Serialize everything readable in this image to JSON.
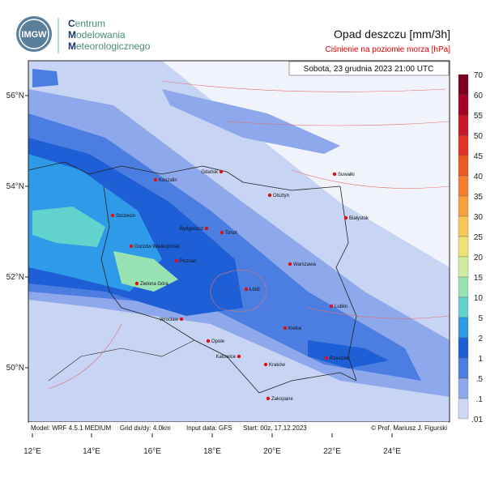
{
  "header": {
    "logo": "IMGW",
    "org": [
      "Centrum",
      "Modelowania",
      "Meteorologicznego"
    ],
    "title": "Opad deszczu [mm/3h]",
    "subtitle": "Ciśnienie na poziomie morza [hPa]",
    "valid_time": "Sobota, 23 grudnia 2023 21:00 UTC"
  },
  "map": {
    "cities": [
      "Gdańsk",
      "Koszalin",
      "Suwałki",
      "Olsztyn",
      "Szczecin",
      "Białystok",
      "Bydgoszcz",
      "Toruń",
      "Gorzów Wielkopolski",
      "Poznań",
      "Warszawa",
      "Zielona Góra",
      "Łódź",
      "Lublin",
      "Wrocław",
      "Kielce",
      "Opole",
      "Rzeszów",
      "Katowice",
      "Kraków",
      "Zakopane"
    ],
    "lat_labels": [
      "56°N",
      "54°N",
      "52°N",
      "50°N"
    ],
    "lon_labels": [
      "12°E",
      "14°E",
      "16°E",
      "18°E",
      "20°E",
      "22°E",
      "24°E"
    ]
  },
  "colorbar": {
    "labels": [
      "70",
      "60",
      "55",
      "50",
      "45",
      "40",
      "35",
      "30",
      "25",
      "20",
      "15",
      "10",
      "5",
      "2",
      "1",
      ".5",
      ".1",
      ".01"
    ],
    "colors": [
      "#7a0020",
      "#a80024",
      "#c81828",
      "#e03424",
      "#ec5a22",
      "#f4802e",
      "#f6a040",
      "#f6c656",
      "#eee276",
      "#cdeea2",
      "#98e2b4",
      "#62d2cc",
      "#2f9ae8",
      "#1f5fd6",
      "#4c7ee2",
      "#8ea8ec",
      "#ccd6f5"
    ]
  },
  "footer": {
    "model": "Model: WRF 4.5.1 MEDIUM",
    "grid": "Grid dx/dy: 4.0km",
    "input": "Input data: GFS",
    "start": "Start: 00z, 17.12.2023",
    "credit": "© Prof. Mariusz J. Figurski"
  }
}
